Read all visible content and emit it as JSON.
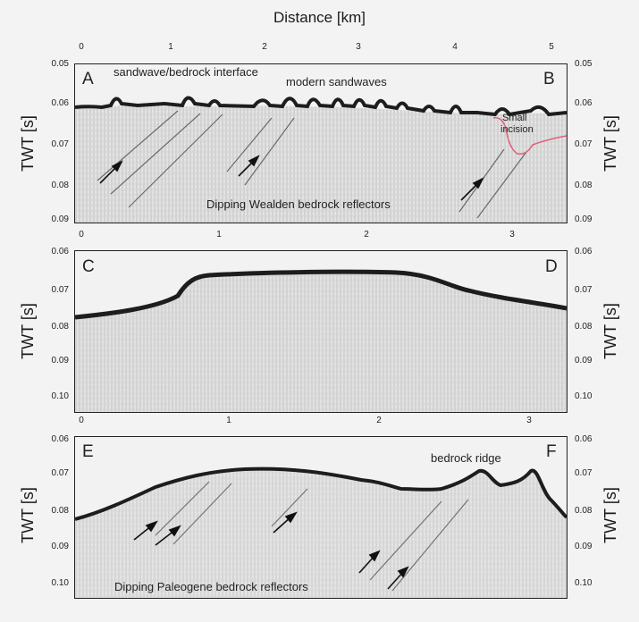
{
  "figure": {
    "x_axis_title": "Distance [km]",
    "y_axis_title": "TWT [s]"
  },
  "panels": [
    {
      "id": "top",
      "left_letter": "A",
      "right_letter": "B",
      "x_ticks": [
        "0",
        "1",
        "2",
        "3",
        "4",
        "5"
      ],
      "y_ticks": [
        "0.05",
        "0.06",
        "0.07",
        "0.08",
        "0.09"
      ],
      "annotations": {
        "interface": "sandwave/bedrock interface",
        "sandwaves": "modern sandwaves",
        "incision1": "Small",
        "incision2": "incision",
        "reflectors": "Dipping Wealden bedrock reflectors"
      }
    },
    {
      "id": "middle",
      "left_letter": "C",
      "right_letter": "D",
      "x_ticks": [
        "0",
        "1",
        "2",
        "3"
      ],
      "y_ticks": [
        "0.06",
        "0.07",
        "0.08",
        "0.09",
        "0.10"
      ]
    },
    {
      "id": "bottom",
      "left_letter": "E",
      "right_letter": "F",
      "x_ticks": [
        "0",
        "1",
        "2",
        "3"
      ],
      "y_ticks": [
        "0.06",
        "0.07",
        "0.08",
        "0.09",
        "0.10"
      ],
      "annotations": {
        "ridge": "bedrock ridge",
        "reflectors": "Dipping Paleogene bedrock reflectors"
      }
    }
  ],
  "colors": {
    "seismic": "#2a2a2a",
    "incision_line": "#e0607a",
    "background": "#f3f3f3"
  }
}
